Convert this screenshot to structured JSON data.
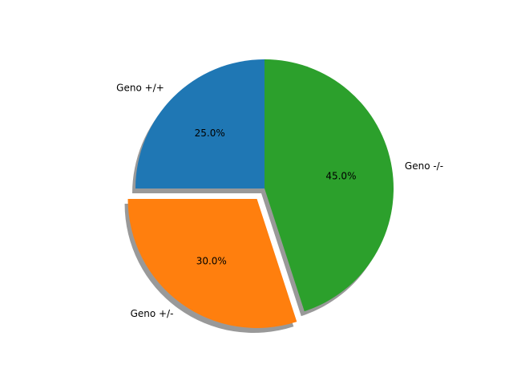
{
  "chart_data": {
    "type": "pie",
    "title": "",
    "start_angle_deg": 90,
    "direction": "counterclockwise",
    "shadow": true,
    "slices": [
      {
        "label": "Geno +/+",
        "value": 25.0,
        "pct_label": "25.0%",
        "color": "#1f77b4",
        "explode": 0.0
      },
      {
        "label": "Geno +/-",
        "value": 30.0,
        "pct_label": "30.0%",
        "color": "#ff7f0e",
        "explode": 0.1
      },
      {
        "label": "Geno -/-",
        "value": 45.0,
        "pct_label": "45.0%",
        "color": "#2ca02c",
        "explode": 0.0
      }
    ]
  }
}
